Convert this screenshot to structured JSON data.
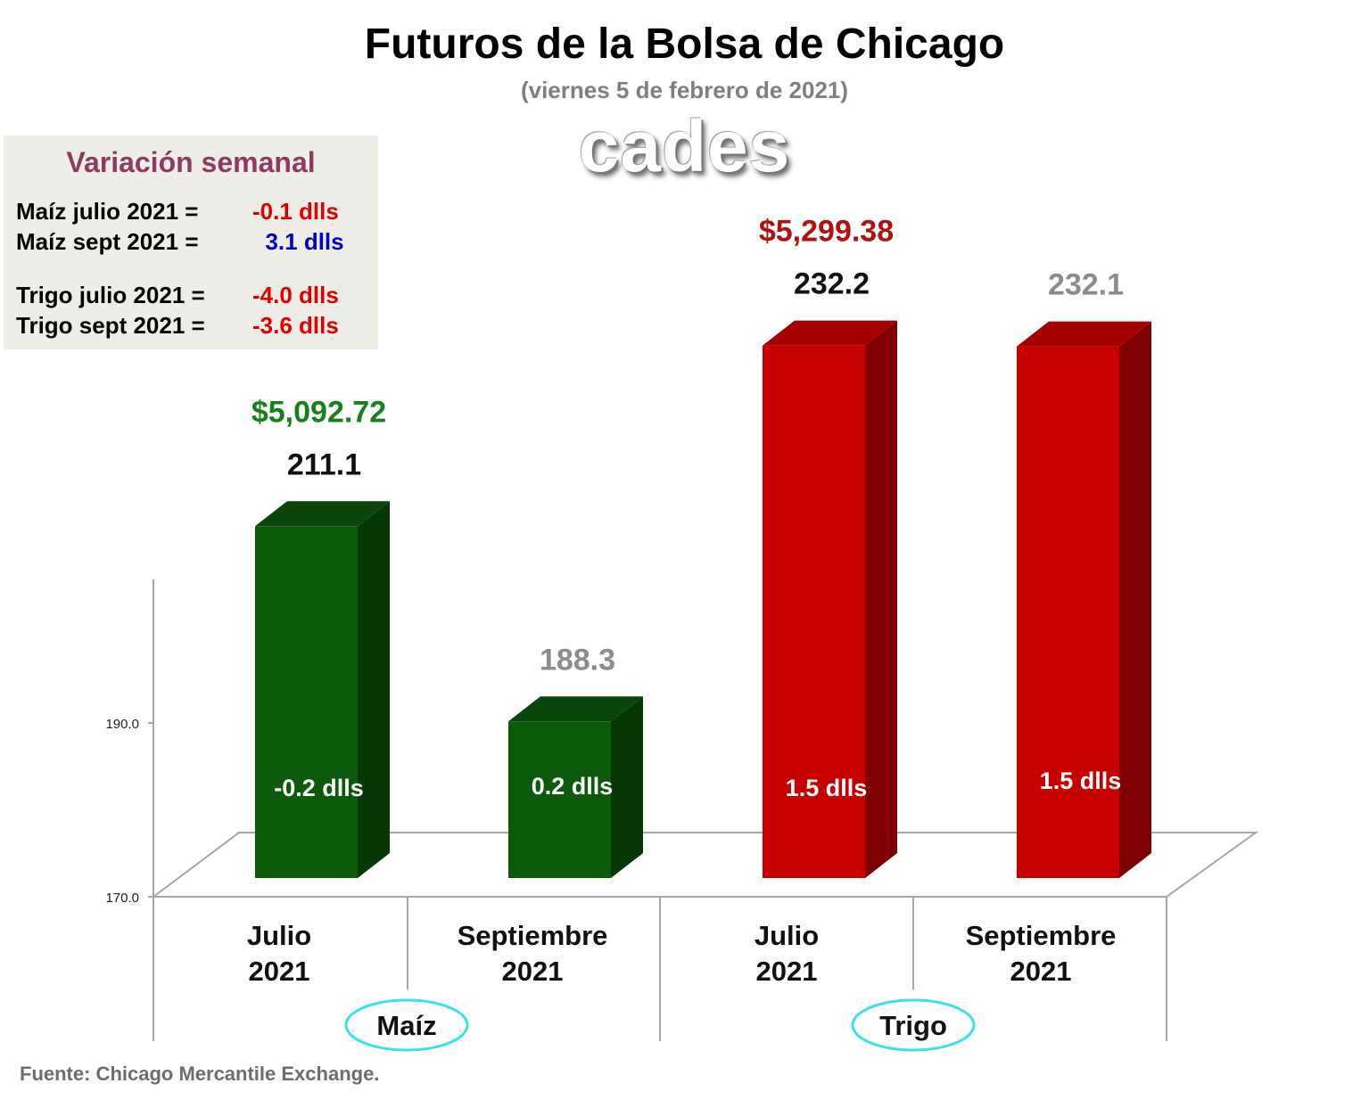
{
  "chart_data": {
    "type": "bar",
    "title": "Futuros de la Bolsa de Chicago",
    "subtitle": "(viernes 5 de febrero de 2021)",
    "logo": "cades",
    "categories": [
      {
        "line1": "Julio",
        "line2": "2021"
      },
      {
        "line1": "Septiembre",
        "line2": "2021"
      },
      {
        "line1": "Julio",
        "line2": "2021"
      },
      {
        "line1": "Septiembre",
        "line2": "2021"
      }
    ],
    "groups": [
      {
        "label": "Maíz",
        "start": 0,
        "end": 1
      },
      {
        "label": "Trigo",
        "start": 2,
        "end": 3
      }
    ],
    "values": [
      211.1,
      188.3,
      232.2,
      232.1
    ],
    "value_labels": [
      "211.1",
      "188.3",
      "232.2",
      "232.1"
    ],
    "value_label_colors": [
      "#111111",
      "#8c8c8c",
      "#111111",
      "#8c8c8c"
    ],
    "price_labels": [
      "$5,092.72",
      "",
      "$5,299.38",
      ""
    ],
    "price_label_colors": [
      "#16801a",
      "",
      "#b01010",
      ""
    ],
    "inner_labels": [
      "-0.2 dlls",
      "0.2 dlls",
      "1.5 dlls",
      "1.5 dlls"
    ],
    "bar_colors": [
      {
        "front": "#0b5a0b",
        "top": "#0a450a",
        "side": "#063806"
      },
      {
        "front": "#0b5a0b",
        "top": "#0a450a",
        "side": "#063806"
      },
      {
        "front": "#c60000",
        "top": "#a40000",
        "side": "#7e0000"
      },
      {
        "front": "#c60000",
        "top": "#a40000",
        "side": "#7e0000"
      }
    ],
    "y_ticks": [
      {
        "value": 170,
        "label": "170.0"
      },
      {
        "value": 190,
        "label": "190.0"
      }
    ],
    "ylim": [
      170,
      232.2
    ],
    "grid": false,
    "group_oval_color": "#3ce0e8"
  },
  "variation": {
    "title": "Variación semanal",
    "rows": [
      {
        "label": "Maíz julio 2021  =",
        "value": "-0.1 dlls",
        "color": "#e00000"
      },
      {
        "label": "Maíz sept 2021  =",
        "value": "  3.1 dlls",
        "color": "#0000c8"
      },
      {
        "label": "Trigo julio 2021 =",
        "value": "-4.0 dlls",
        "color": "#e00000"
      },
      {
        "label": "Trigo sept 2021 =",
        "value": "-3.6 dlls",
        "color": "#e00000"
      }
    ]
  },
  "source": "Fuente: Chicago Mercantile Exchange."
}
